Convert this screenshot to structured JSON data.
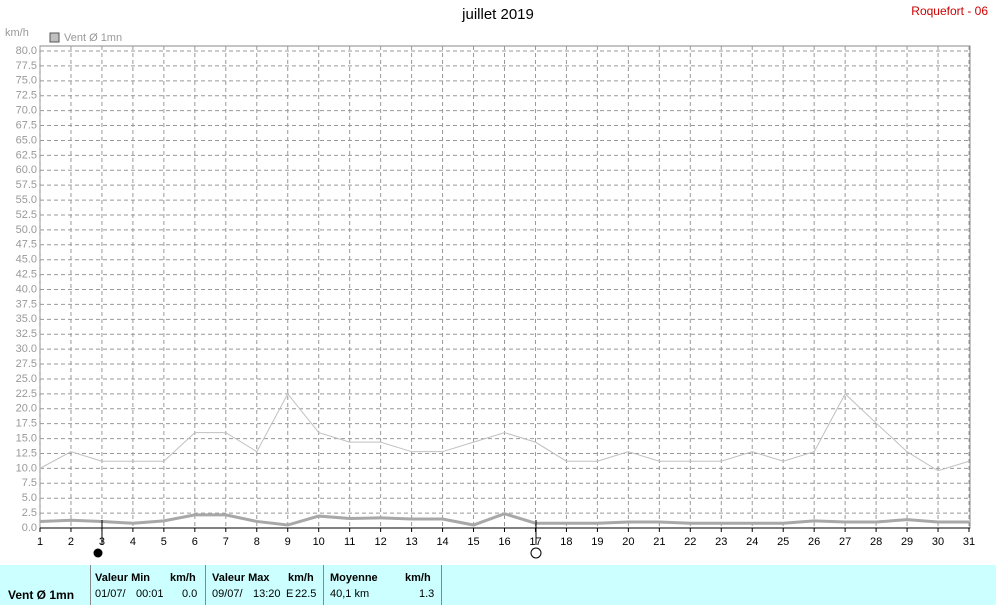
{
  "header": {
    "station": "Roquefort - 06"
  },
  "chart_data": {
    "type": "line",
    "title": "juillet 2019",
    "ylabel": "km/h",
    "x": [
      1,
      2,
      3,
      4,
      5,
      6,
      7,
      8,
      9,
      10,
      11,
      12,
      13,
      14,
      15,
      16,
      17,
      18,
      19,
      20,
      21,
      22,
      23,
      24,
      25,
      26,
      27,
      28,
      29,
      30,
      31
    ],
    "xlim": [
      1,
      31
    ],
    "xticks": [
      1,
      2,
      3,
      4,
      5,
      6,
      7,
      8,
      9,
      10,
      11,
      12,
      13,
      14,
      15,
      16,
      17,
      18,
      19,
      20,
      21,
      22,
      23,
      24,
      25,
      26,
      27,
      28,
      29,
      30,
      31
    ],
    "ylim": [
      0,
      80
    ],
    "yticks": [
      {
        "value": 0,
        "label": "0.0"
      },
      {
        "value": 2.5,
        "label": "2.5"
      },
      {
        "value": 5,
        "label": "5.0"
      },
      {
        "value": 7.5,
        "label": "7.5"
      },
      {
        "value": 10,
        "label": "10.0"
      },
      {
        "value": 12.5,
        "label": "12.5"
      },
      {
        "value": 15,
        "label": "15.0"
      },
      {
        "value": 17.5,
        "label": "17.5"
      },
      {
        "value": 20,
        "label": "20.0"
      },
      {
        "value": 22.5,
        "label": "22.5"
      },
      {
        "value": 25,
        "label": "25.0"
      },
      {
        "value": 27.5,
        "label": "27.5"
      },
      {
        "value": 30,
        "label": "30.0"
      },
      {
        "value": 32.5,
        "label": "32.5"
      },
      {
        "value": 35,
        "label": "35.0"
      },
      {
        "value": 37.5,
        "label": "37.5"
      },
      {
        "value": 40,
        "label": "40.0"
      },
      {
        "value": 42.5,
        "label": "42.5"
      },
      {
        "value": 45,
        "label": "45.0"
      },
      {
        "value": 47.5,
        "label": "47.5"
      },
      {
        "value": 50,
        "label": "50.0"
      },
      {
        "value": 52.5,
        "label": "52.5"
      },
      {
        "value": 55,
        "label": "55.0"
      },
      {
        "value": 57.5,
        "label": "57.5"
      },
      {
        "value": 60,
        "label": "60.0"
      },
      {
        "value": 62.5,
        "label": "62.5"
      },
      {
        "value": 65,
        "label": "65.0"
      },
      {
        "value": 67.5,
        "label": "67.5"
      },
      {
        "value": 70,
        "label": "70.0"
      },
      {
        "value": 72.5,
        "label": "72.5"
      },
      {
        "value": 75,
        "label": "75.0"
      },
      {
        "value": 77.5,
        "label": "77.5"
      },
      {
        "value": 80,
        "label": "80.0"
      }
    ],
    "grid": true,
    "series": [
      {
        "name": "Vent Ø 1mn",
        "color": "#c0c0c0",
        "width": 1,
        "values": [
          10,
          12.8,
          11.2,
          11.2,
          11.2,
          16,
          16,
          12.8,
          22.5,
          16,
          14.4,
          14.4,
          12.8,
          12.8,
          14.4,
          16,
          14.4,
          11.2,
          11.2,
          12.8,
          11.2,
          11.2,
          11.2,
          12.8,
          11.2,
          12.8,
          22.5,
          17.6,
          12.8,
          9.6,
          11.2
        ]
      },
      {
        "color": "#a8a8a8",
        "width": 3,
        "values": [
          1.1,
          1.3,
          1.1,
          0.8,
          1.2,
          2.2,
          2.2,
          1.1,
          0.5,
          2,
          1.6,
          1.7,
          1.5,
          1.5,
          0.5,
          2.4,
          0.8,
          0.8,
          0.8,
          1,
          1,
          0.8,
          0.8,
          0.8,
          0.8,
          1.2,
          1,
          1,
          1.4,
          1,
          1
        ]
      }
    ]
  },
  "summary": {
    "label": "Vent Ø 1mn",
    "min": {
      "title": "Valeur Min",
      "unit": "km/h",
      "date": "01/07/",
      "time": "00:01",
      "value": "0.0"
    },
    "max": {
      "title": "Valeur Max",
      "unit": "km/h",
      "date": "09/07/",
      "time": "13:20",
      "dir": "E",
      "value": "22.5"
    },
    "mean": {
      "title": "Moyenne",
      "unit": "km/h",
      "distance": "40,1 km",
      "value": "1.3"
    }
  }
}
